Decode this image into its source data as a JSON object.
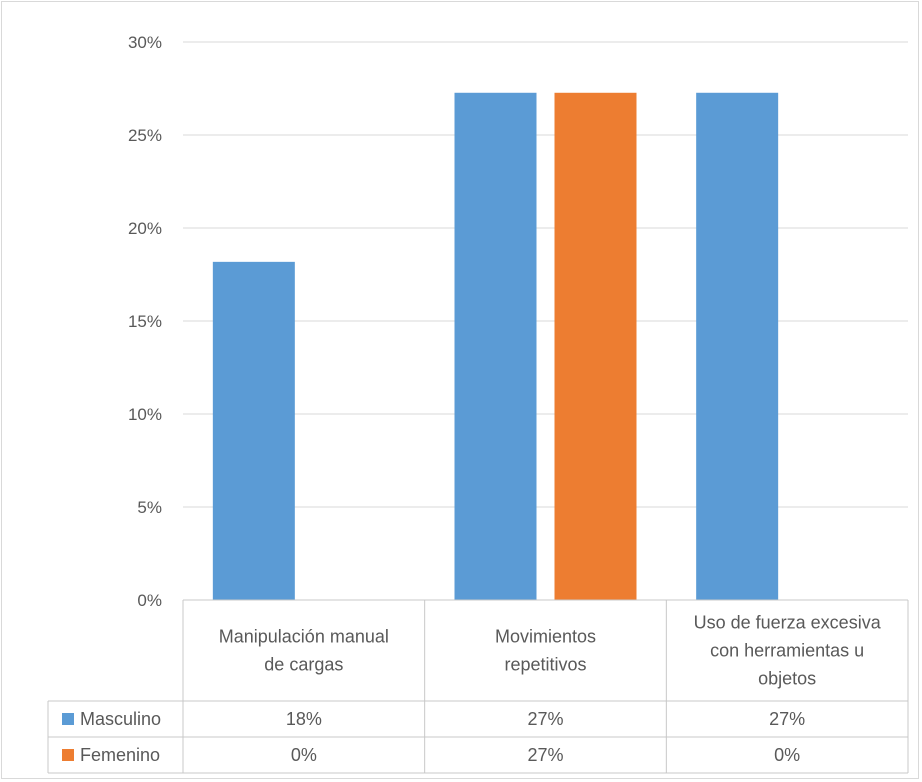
{
  "chart_data": {
    "type": "bar",
    "categories": [
      [
        "Manipulación manual",
        "de cargas"
      ],
      [
        "Movimientos",
        "repetitivos"
      ],
      [
        "Uso de fuerza excesiva",
        "con herramientas u",
        "objetos"
      ]
    ],
    "series": [
      {
        "name": "Masculino",
        "color": "#5b9bd5",
        "values": [
          0.1818,
          0.2727,
          0.2727
        ],
        "labels": [
          "18%",
          "27%",
          "27%"
        ]
      },
      {
        "name": "Femenino",
        "color": "#ed7d31",
        "values": [
          0,
          0.2727,
          0
        ],
        "labels": [
          "0%",
          "27%",
          "0%"
        ]
      }
    ],
    "ylim": [
      0,
      0.3
    ],
    "yticks": [
      "0%",
      "5%",
      "10%",
      "15%",
      "20%",
      "25%",
      "30%"
    ],
    "grid": true,
    "legend": "data-table"
  }
}
